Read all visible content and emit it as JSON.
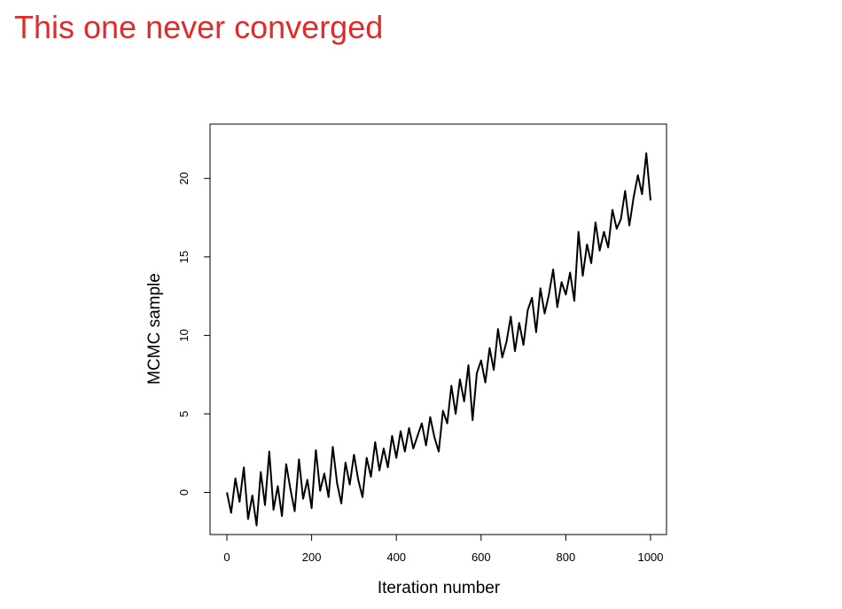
{
  "slide": {
    "title": "This one never converged",
    "title_color": "#e02b2b"
  },
  "chart_data": {
    "type": "line",
    "title": "",
    "xlabel": "Iteration number",
    "ylabel": "MCMC sample",
    "xlim": [
      0,
      1000
    ],
    "ylim": [
      -2.4,
      22.5
    ],
    "xticks": [
      0,
      200,
      400,
      600,
      800,
      1000
    ],
    "yticks": [
      0,
      5,
      10,
      15,
      20
    ],
    "xtick_labels": [
      "0",
      "200",
      "400",
      "600",
      "800",
      "1000"
    ],
    "ytick_labels": [
      "0",
      "5",
      "10",
      "15",
      "20"
    ],
    "grid": false,
    "legend": "none",
    "line_color": "#000000",
    "series": [
      {
        "x": [
          0,
          10,
          20,
          30,
          40,
          50,
          60,
          70,
          80,
          90,
          100,
          110,
          120,
          130,
          140,
          150,
          160,
          170,
          180,
          190,
          200,
          210,
          220,
          230,
          240,
          250,
          260,
          270,
          280,
          290,
          300,
          310,
          320,
          330,
          340,
          350,
          360,
          370,
          380,
          390,
          400,
          410,
          420,
          430,
          440,
          450,
          460,
          470,
          480,
          490,
          500,
          510,
          520,
          530,
          540,
          550,
          560,
          570,
          580,
          590,
          600,
          610,
          620,
          630,
          640,
          650,
          660,
          670,
          680,
          690,
          700,
          710,
          720,
          730,
          740,
          750,
          760,
          770,
          780,
          790,
          800,
          810,
          820,
          830,
          840,
          850,
          860,
          870,
          880,
          890,
          900,
          910,
          920,
          930,
          940,
          950,
          960,
          970,
          980,
          990,
          1000
        ],
        "values": [
          0.0,
          -1.3,
          0.9,
          -0.6,
          1.6,
          -1.7,
          -0.2,
          -2.1,
          1.3,
          -0.8,
          2.6,
          -1.1,
          0.4,
          -1.5,
          1.8,
          0.2,
          -1.2,
          2.1,
          -0.4,
          0.8,
          -1.0,
          2.7,
          0.1,
          1.2,
          -0.3,
          2.9,
          0.6,
          -0.7,
          1.9,
          0.5,
          2.4,
          0.8,
          -0.3,
          2.2,
          1.0,
          3.2,
          1.4,
          2.8,
          1.6,
          3.6,
          2.2,
          3.9,
          2.6,
          4.1,
          2.8,
          3.6,
          4.4,
          3.0,
          4.8,
          3.5,
          2.6,
          5.2,
          4.4,
          6.8,
          5.0,
          7.2,
          5.8,
          8.1,
          4.6,
          7.6,
          8.4,
          7.0,
          9.2,
          7.8,
          10.4,
          8.6,
          9.6,
          11.2,
          9.0,
          10.8,
          9.4,
          11.6,
          12.4,
          10.2,
          13.0,
          11.4,
          12.6,
          14.2,
          11.8,
          13.4,
          12.6,
          14.0,
          12.2,
          16.6,
          13.8,
          15.8,
          14.6,
          17.2,
          15.4,
          16.6,
          15.6,
          18.0,
          16.8,
          17.4,
          19.2,
          17.0,
          18.8,
          20.2,
          19.0,
          21.6,
          18.6
        ]
      }
    ]
  }
}
